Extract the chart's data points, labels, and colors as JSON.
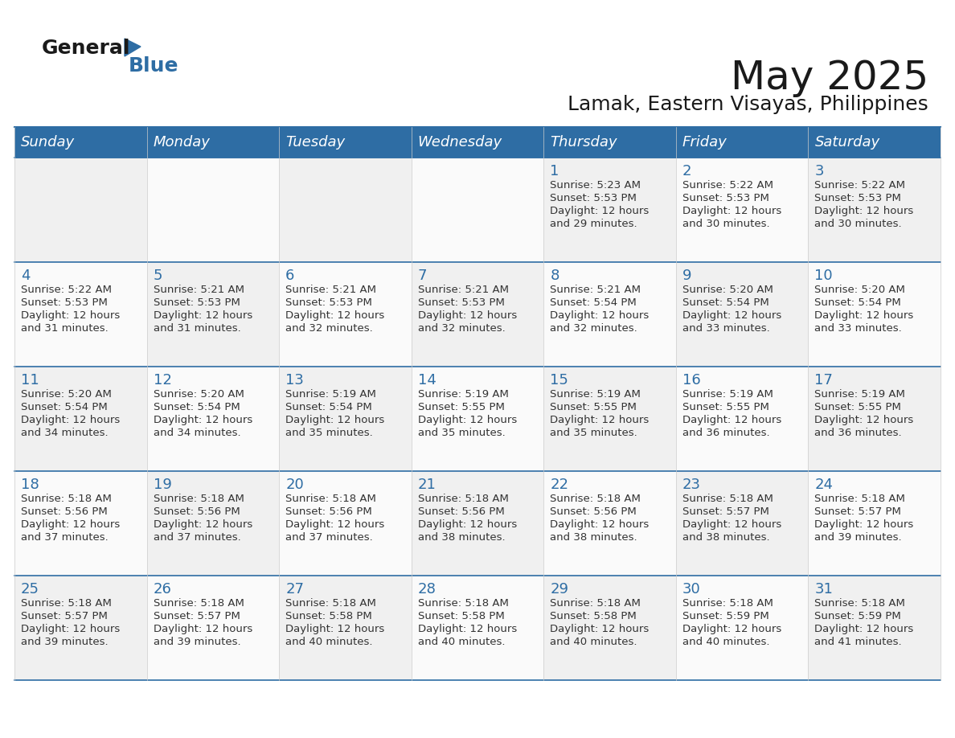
{
  "title": "May 2025",
  "subtitle": "Lamak, Eastern Visayas, Philippines",
  "header_bg_color": "#2E6DA4",
  "header_text_color": "#FFFFFF",
  "cell_bg_color": "#F2F2F2",
  "cell_alt_bg_color": "#FFFFFF",
  "day_number_color": "#2E6DA4",
  "body_text_color": "#333333",
  "line_color": "#2E6DA4",
  "days_of_week": [
    "Sunday",
    "Monday",
    "Tuesday",
    "Wednesday",
    "Thursday",
    "Friday",
    "Saturday"
  ],
  "logo_general_color": "#1A1A1A",
  "logo_blue_color": "#2E6DA4",
  "calendar_data": [
    [
      {
        "day": "",
        "sunrise": "",
        "sunset": "",
        "daylight": ""
      },
      {
        "day": "",
        "sunrise": "",
        "sunset": "",
        "daylight": ""
      },
      {
        "day": "",
        "sunrise": "",
        "sunset": "",
        "daylight": ""
      },
      {
        "day": "",
        "sunrise": "",
        "sunset": "",
        "daylight": ""
      },
      {
        "day": "1",
        "sunrise": "5:23 AM",
        "sunset": "5:53 PM",
        "daylight": "12 hours and 29 minutes."
      },
      {
        "day": "2",
        "sunrise": "5:22 AM",
        "sunset": "5:53 PM",
        "daylight": "12 hours and 30 minutes."
      },
      {
        "day": "3",
        "sunrise": "5:22 AM",
        "sunset": "5:53 PM",
        "daylight": "12 hours and 30 minutes."
      }
    ],
    [
      {
        "day": "4",
        "sunrise": "5:22 AM",
        "sunset": "5:53 PM",
        "daylight": "12 hours and 31 minutes."
      },
      {
        "day": "5",
        "sunrise": "5:21 AM",
        "sunset": "5:53 PM",
        "daylight": "12 hours and 31 minutes."
      },
      {
        "day": "6",
        "sunrise": "5:21 AM",
        "sunset": "5:53 PM",
        "daylight": "12 hours and 32 minutes."
      },
      {
        "day": "7",
        "sunrise": "5:21 AM",
        "sunset": "5:53 PM",
        "daylight": "12 hours and 32 minutes."
      },
      {
        "day": "8",
        "sunrise": "5:21 AM",
        "sunset": "5:54 PM",
        "daylight": "12 hours and 32 minutes."
      },
      {
        "day": "9",
        "sunrise": "5:20 AM",
        "sunset": "5:54 PM",
        "daylight": "12 hours and 33 minutes."
      },
      {
        "day": "10",
        "sunrise": "5:20 AM",
        "sunset": "5:54 PM",
        "daylight": "12 hours and 33 minutes."
      }
    ],
    [
      {
        "day": "11",
        "sunrise": "5:20 AM",
        "sunset": "5:54 PM",
        "daylight": "12 hours and 34 minutes."
      },
      {
        "day": "12",
        "sunrise": "5:20 AM",
        "sunset": "5:54 PM",
        "daylight": "12 hours and 34 minutes."
      },
      {
        "day": "13",
        "sunrise": "5:19 AM",
        "sunset": "5:54 PM",
        "daylight": "12 hours and 35 minutes."
      },
      {
        "day": "14",
        "sunrise": "5:19 AM",
        "sunset": "5:55 PM",
        "daylight": "12 hours and 35 minutes."
      },
      {
        "day": "15",
        "sunrise": "5:19 AM",
        "sunset": "5:55 PM",
        "daylight": "12 hours and 35 minutes."
      },
      {
        "day": "16",
        "sunrise": "5:19 AM",
        "sunset": "5:55 PM",
        "daylight": "12 hours and 36 minutes."
      },
      {
        "day": "17",
        "sunrise": "5:19 AM",
        "sunset": "5:55 PM",
        "daylight": "12 hours and 36 minutes."
      }
    ],
    [
      {
        "day": "18",
        "sunrise": "5:18 AM",
        "sunset": "5:56 PM",
        "daylight": "12 hours and 37 minutes."
      },
      {
        "day": "19",
        "sunrise": "5:18 AM",
        "sunset": "5:56 PM",
        "daylight": "12 hours and 37 minutes."
      },
      {
        "day": "20",
        "sunrise": "5:18 AM",
        "sunset": "5:56 PM",
        "daylight": "12 hours and 37 minutes."
      },
      {
        "day": "21",
        "sunrise": "5:18 AM",
        "sunset": "5:56 PM",
        "daylight": "12 hours and 38 minutes."
      },
      {
        "day": "22",
        "sunrise": "5:18 AM",
        "sunset": "5:56 PM",
        "daylight": "12 hours and 38 minutes."
      },
      {
        "day": "23",
        "sunrise": "5:18 AM",
        "sunset": "5:57 PM",
        "daylight": "12 hours and 38 minutes."
      },
      {
        "day": "24",
        "sunrise": "5:18 AM",
        "sunset": "5:57 PM",
        "daylight": "12 hours and 39 minutes."
      }
    ],
    [
      {
        "day": "25",
        "sunrise": "5:18 AM",
        "sunset": "5:57 PM",
        "daylight": "12 hours and 39 minutes."
      },
      {
        "day": "26",
        "sunrise": "5:18 AM",
        "sunset": "5:57 PM",
        "daylight": "12 hours and 39 minutes."
      },
      {
        "day": "27",
        "sunrise": "5:18 AM",
        "sunset": "5:58 PM",
        "daylight": "12 hours and 40 minutes."
      },
      {
        "day": "28",
        "sunrise": "5:18 AM",
        "sunset": "5:58 PM",
        "daylight": "12 hours and 40 minutes."
      },
      {
        "day": "29",
        "sunrise": "5:18 AM",
        "sunset": "5:58 PM",
        "daylight": "12 hours and 40 minutes."
      },
      {
        "day": "30",
        "sunrise": "5:18 AM",
        "sunset": "5:59 PM",
        "daylight": "12 hours and 40 minutes."
      },
      {
        "day": "31",
        "sunrise": "5:18 AM",
        "sunset": "5:59 PM",
        "daylight": "12 hours and 41 minutes."
      }
    ]
  ]
}
